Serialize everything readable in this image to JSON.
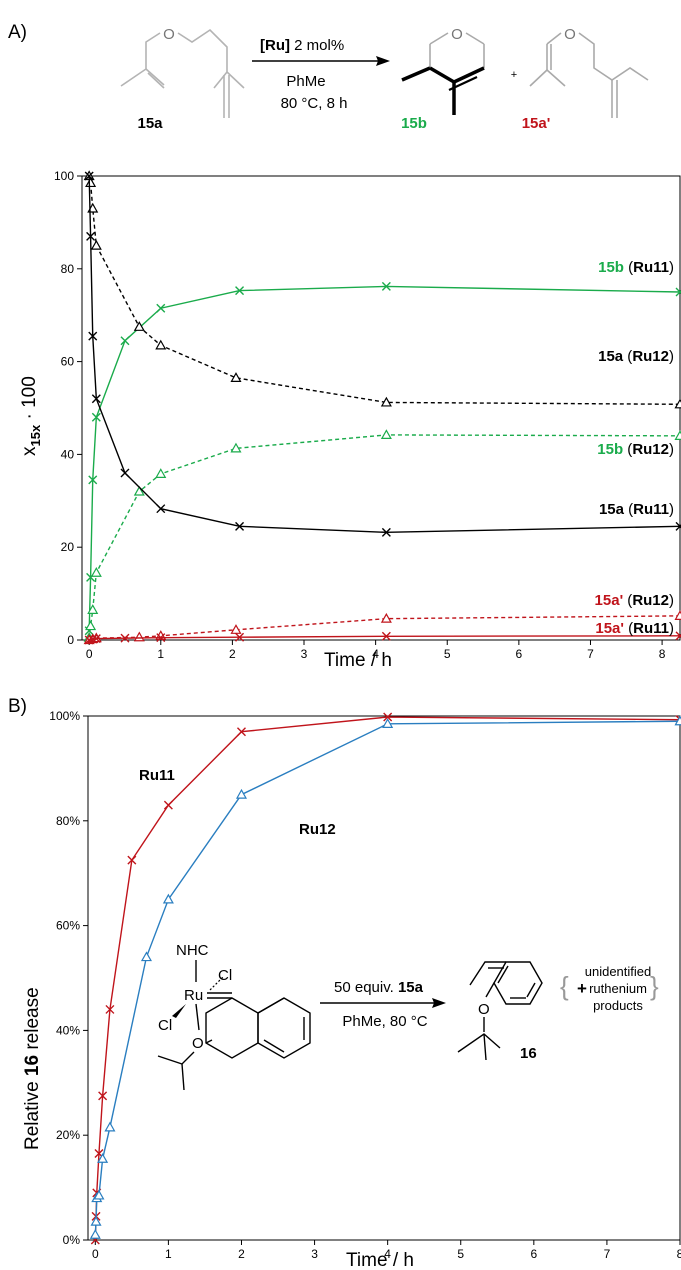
{
  "panel_a": {
    "label": "A)",
    "scheme": {
      "reactant": "15a",
      "catalyst_bold": "[Ru]",
      "catalyst_rest": " 2 mol%",
      "solvent": "PhMe",
      "conditions": "80 °C, 8 h",
      "product": "15b",
      "plus": "+",
      "byproduct": "15a'"
    }
  },
  "panel_b": {
    "label": "B)",
    "scheme": {
      "nhc": "NHC",
      "cl1": "Cl",
      "cl2": "Cl",
      "ru": "Ru",
      "o": "O",
      "arrow_prefix": "50 equiv. ",
      "arrow_bold": "15a",
      "conditions": "PhMe, 80 °C",
      "plus": "+",
      "product_label": "16",
      "unidentified": [
        "unidentified",
        "ruthenium",
        "products"
      ]
    }
  },
  "colors": {
    "black": "#000000",
    "green": "#1aab4b",
    "red": "#c0141b",
    "blue": "#2a7ec0"
  },
  "chart_data": [
    {
      "type": "line",
      "xlabel": "Time / h",
      "ylabel_main": "x",
      "ylabel_sub": "15x",
      "ylabel_suffix": " · 100",
      "xlim": [
        -0.1,
        8.25
      ],
      "ylim": [
        0,
        100
      ],
      "xticks": [
        0,
        1,
        2,
        3,
        4,
        5,
        6,
        7,
        8
      ],
      "yticks": [
        0,
        20,
        40,
        60,
        80,
        100
      ],
      "series": [
        {
          "name": "15b (Ru11)",
          "label_bold": "15b",
          "label_cat": "Ru11",
          "color": "green",
          "style": "solid",
          "marker": "x",
          "x": [
            0,
            0.02,
            0.05,
            0.1,
            0.5,
            1.0,
            2.1,
            4.15,
            8.25
          ],
          "y": [
            2,
            13.5,
            34.5,
            48,
            64.5,
            71.5,
            75.3,
            76.2,
            75
          ]
        },
        {
          "name": "15a (Ru12)",
          "label_bold": "15a",
          "label_cat": "Ru12",
          "color": "black",
          "style": "dashed",
          "marker": "triangle",
          "x": [
            0,
            0.02,
            0.05,
            0.1,
            0.7,
            1.0,
            2.05,
            4.15,
            8.25
          ],
          "y": [
            100,
            98.5,
            93,
            85,
            67.5,
            63.5,
            56.5,
            51.2,
            50.8
          ]
        },
        {
          "name": "15b (Ru12)",
          "label_bold": "15b",
          "label_cat": "Ru12",
          "color": "green",
          "style": "dashed",
          "marker": "triangle",
          "x": [
            0,
            0.02,
            0.05,
            0.1,
            0.7,
            1.0,
            2.05,
            4.15,
            8.25
          ],
          "y": [
            0.5,
            3,
            6.5,
            14.5,
            32,
            35.8,
            41.3,
            44.2,
            44
          ]
        },
        {
          "name": "15a (Ru11)",
          "label_bold": "15a",
          "label_cat": "Ru11",
          "color": "black",
          "style": "solid",
          "marker": "x",
          "x": [
            0,
            0.02,
            0.05,
            0.1,
            0.5,
            1.0,
            2.1,
            4.15,
            8.25
          ],
          "y": [
            100,
            87,
            65.5,
            52,
            36,
            28.3,
            24.5,
            23.2,
            24.5
          ]
        },
        {
          "name": "15a' (Ru12)",
          "label_bold": "15a'",
          "label_cat": "Ru12",
          "color": "red",
          "style": "dashed",
          "marker": "triangle",
          "x": [
            0,
            0.05,
            0.1,
            0.7,
            1.0,
            2.05,
            4.15,
            8.25
          ],
          "y": [
            0,
            0.2,
            0.4,
            0.6,
            0.9,
            2.2,
            4.6,
            5.2
          ]
        },
        {
          "name": "15a' (Ru11)",
          "label_bold": "15a'",
          "label_cat": "Ru11",
          "color": "red",
          "style": "solid",
          "marker": "x",
          "x": [
            0,
            0.05,
            0.1,
            0.5,
            1.0,
            2.1,
            4.15,
            8.25
          ],
          "y": [
            0,
            0.2,
            0.3,
            0.4,
            0.5,
            0.6,
            0.8,
            0.9
          ]
        }
      ]
    },
    {
      "type": "line",
      "xlabel": "Time / h",
      "ylabel_pre": "Relative ",
      "ylabel_bold": "16",
      "ylabel_post": " release",
      "xlim": [
        -0.1,
        8
      ],
      "ylim": [
        0,
        100
      ],
      "xticks": [
        0,
        1,
        2,
        3,
        4,
        5,
        6,
        7,
        8
      ],
      "ytick_labels": [
        "0%",
        "20%",
        "40%",
        "60%",
        "80%",
        "100%"
      ],
      "yticks": [
        0,
        20,
        40,
        60,
        80,
        100
      ],
      "series": [
        {
          "name": "Ru11",
          "color": "red",
          "marker": "x",
          "x": [
            0,
            0.01,
            0.02,
            0.05,
            0.1,
            0.2,
            0.5,
            1.0,
            2.0,
            4.0,
            8.0
          ],
          "y": [
            0,
            4.5,
            9,
            16.5,
            27.5,
            44,
            72.5,
            83,
            97,
            99.8,
            99.3
          ]
        },
        {
          "name": "Ru12",
          "color": "blue",
          "marker": "triangle",
          "x": [
            0,
            0.01,
            0.02,
            0.05,
            0.1,
            0.2,
            0.7,
            1.0,
            2.0,
            4.0,
            8.0
          ],
          "y": [
            1,
            3.5,
            8,
            8.5,
            15.5,
            21.5,
            54,
            65,
            85,
            98.5,
            99
          ]
        }
      ]
    }
  ]
}
